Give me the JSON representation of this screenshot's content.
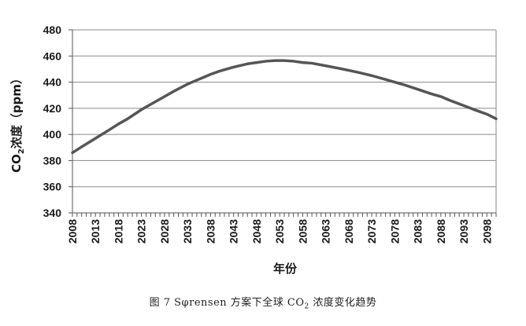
{
  "chart_data": {
    "type": "line",
    "title": "",
    "xlabel": "年份",
    "ylabel_main": "CO",
    "ylabel_sub": "2",
    "ylabel_rest": "浓度（ppm）",
    "ylim": [
      340,
      480
    ],
    "yticks": [
      "340",
      "360",
      "380",
      "400",
      "420",
      "440",
      "460",
      "480"
    ],
    "xlim": [
      2008,
      2100
    ],
    "xticks": [
      "2008",
      "2013",
      "2018",
      "2023",
      "2028",
      "2033",
      "2038",
      "2043",
      "2048",
      "2053",
      "2058",
      "2063",
      "2068",
      "2073",
      "2078",
      "2083",
      "2088",
      "2093",
      "2098"
    ],
    "grid": "horizontal",
    "series": [
      {
        "color": "#555555",
        "points": [
          [
            2008,
            386
          ],
          [
            2010,
            390.5
          ],
          [
            2013,
            397
          ],
          [
            2016,
            403.5
          ],
          [
            2018,
            408
          ],
          [
            2020,
            412
          ],
          [
            2023,
            419
          ],
          [
            2026,
            425
          ],
          [
            2028,
            429
          ],
          [
            2030,
            433
          ],
          [
            2033,
            438.5
          ],
          [
            2036,
            443
          ],
          [
            2038,
            446
          ],
          [
            2040,
            448.5
          ],
          [
            2043,
            451.5
          ],
          [
            2046,
            454
          ],
          [
            2048,
            455
          ],
          [
            2050,
            456
          ],
          [
            2052,
            456.5
          ],
          [
            2054,
            456.5
          ],
          [
            2056,
            456
          ],
          [
            2058,
            455
          ],
          [
            2060,
            454.5
          ],
          [
            2063,
            452.5
          ],
          [
            2066,
            450.5
          ],
          [
            2068,
            449
          ],
          [
            2070,
            447.5
          ],
          [
            2073,
            445
          ],
          [
            2076,
            442
          ],
          [
            2078,
            440
          ],
          [
            2080,
            438
          ],
          [
            2083,
            434.5
          ],
          [
            2086,
            431
          ],
          [
            2088,
            429
          ],
          [
            2090,
            426
          ],
          [
            2093,
            422
          ],
          [
            2096,
            418
          ],
          [
            2098,
            415.5
          ],
          [
            2100,
            412
          ]
        ]
      }
    ]
  },
  "caption": {
    "prefix": "图 7  Sφrensen 方案下全球 CO",
    "sub": "2",
    "suffix": " 浓度变化趋势"
  }
}
